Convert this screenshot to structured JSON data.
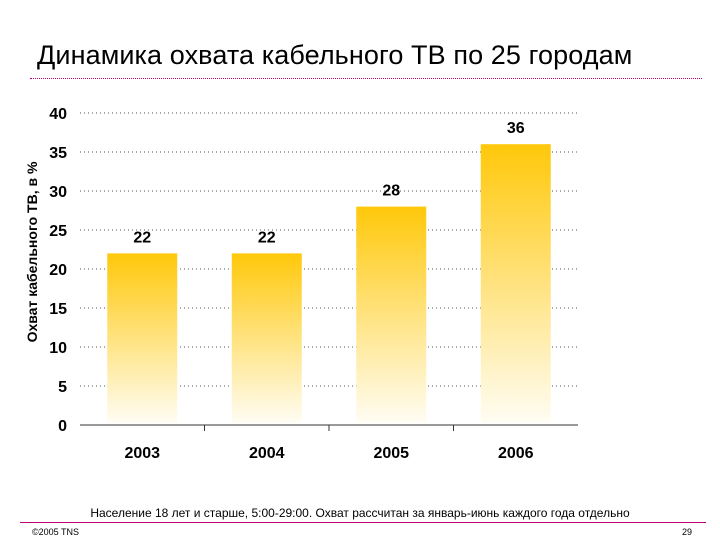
{
  "slide": {
    "title": "Динамика охвата кабельного ТВ по 25 городам",
    "footnote": "Население 18 лет и старше, 5:00-29:00. Охват рассчитан за январь-июнь каждого года отдельно",
    "copyright": "©2005 TNS",
    "page_number": "29"
  },
  "colors": {
    "accent": "#c0007a",
    "bar_top": "#ffc80a",
    "bar_bottom": "#fffdf4"
  },
  "chart_data": {
    "type": "bar",
    "title": "",
    "xlabel": "",
    "ylabel": "Охват кабельного ТВ, в %",
    "categories": [
      "2003",
      "2004",
      "2005",
      "2006"
    ],
    "values": [
      22,
      22,
      28,
      36
    ],
    "value_labels": [
      "22",
      "22",
      "28",
      "36"
    ],
    "ylim": [
      0,
      40
    ],
    "yticks": [
      0,
      5,
      10,
      15,
      20,
      25,
      30,
      35,
      40
    ],
    "grid": true,
    "legend": "none"
  }
}
